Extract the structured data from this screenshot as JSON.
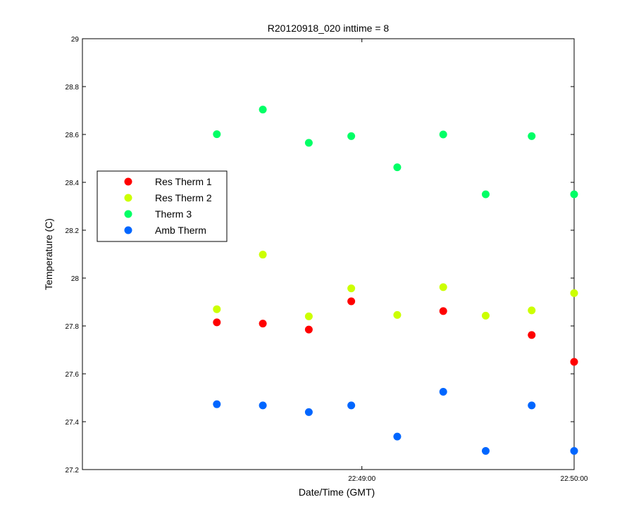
{
  "chart_data": {
    "type": "scatter",
    "title": "R20120918_020 inttime = 8",
    "xlabel": "Date/Time (GMT)",
    "ylabel": "Temperature (C)",
    "xlim": [
      "22:47:41",
      "22:50:00"
    ],
    "ylim": [
      27.2,
      29
    ],
    "x_ticks": [
      "22:49:00",
      "22:50:00"
    ],
    "y_ticks": [
      "27.2",
      "27.4",
      "27.6",
      "27.8",
      "28",
      "28.2",
      "28.4",
      "28.6",
      "28.8",
      "29"
    ],
    "grid": false,
    "legend_position": "left",
    "x": [
      "22:48:19",
      "22:48:32",
      "22:48:45",
      "22:48:57",
      "22:49:10",
      "22:49:23",
      "22:49:35",
      "22:49:48",
      "22:50:00"
    ],
    "series": [
      {
        "name": "Res Therm 1",
        "color": "#ff0000",
        "x": [
          "22:48:19",
          "22:48:32",
          "22:48:45",
          "22:48:57",
          "22:49:23",
          "22:49:48",
          "22:50:00"
        ],
        "values": [
          27.815,
          27.81,
          27.785,
          27.903,
          27.862,
          27.762,
          27.65
        ]
      },
      {
        "name": "Res Therm 2",
        "color": "#ccff00",
        "x": [
          "22:48:19",
          "22:48:32",
          "22:48:45",
          "22:48:57",
          "22:49:10",
          "22:49:23",
          "22:49:35",
          "22:49:48",
          "22:50:00"
        ],
        "values": [
          27.87,
          28.098,
          27.84,
          27.957,
          27.846,
          27.962,
          27.843,
          27.865,
          27.937
        ]
      },
      {
        "name": "Therm 3",
        "color": "#00ff66",
        "x": [
          "22:48:19",
          "22:48:32",
          "22:48:45",
          "22:48:57",
          "22:49:10",
          "22:49:23",
          "22:49:35",
          "22:49:48",
          "22:50:00"
        ],
        "values": [
          28.601,
          28.704,
          28.565,
          28.593,
          28.463,
          28.6,
          28.35,
          28.593,
          28.35
        ]
      },
      {
        "name": "Amb Therm",
        "color": "#0066ff",
        "x": [
          "22:48:19",
          "22:48:32",
          "22:48:45",
          "22:48:57",
          "22:49:10",
          "22:49:23",
          "22:49:35",
          "22:49:48",
          "22:50:00"
        ],
        "values": [
          27.473,
          27.468,
          27.44,
          27.468,
          27.338,
          27.525,
          27.278,
          27.468,
          27.278
        ]
      }
    ]
  }
}
